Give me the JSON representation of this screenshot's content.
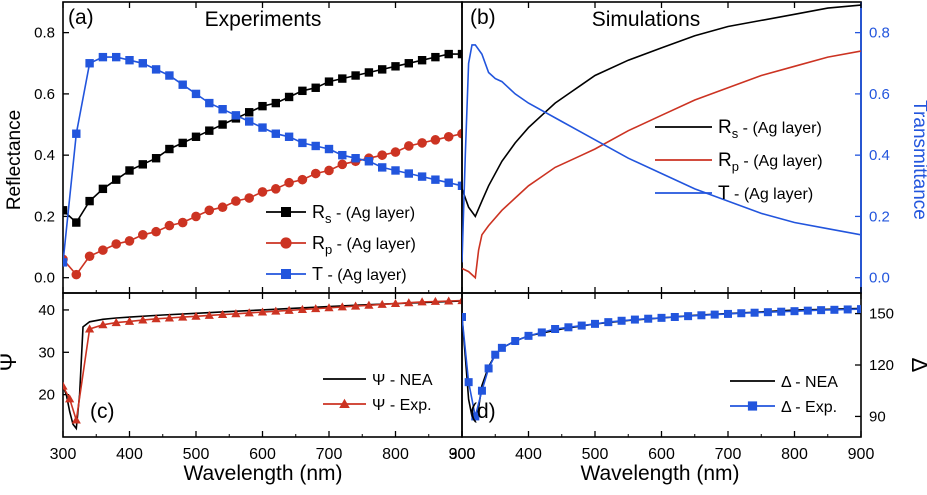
{
  "chart_data": [
    {
      "panel": "a",
      "type": "line",
      "panel_label": "(a)",
      "title": "Experiments",
      "ylabel": "Reflectance",
      "xlim": [
        300,
        900
      ],
      "ylim": [
        -0.05,
        0.9
      ],
      "yticks": [
        "0.0",
        "0.2",
        "0.4",
        "0.6",
        "0.8"
      ],
      "ytick_values": [
        0.0,
        0.2,
        0.4,
        0.6,
        0.8
      ],
      "legend_position": "bottom-right",
      "series": [
        {
          "key": "Rs",
          "label_main": "R",
          "label_sub": "s",
          "label_rest": " - (Ag layer)",
          "color": "#000000",
          "marker": "square",
          "x": [
            300,
            320,
            340,
            360,
            380,
            400,
            420,
            440,
            460,
            480,
            500,
            520,
            540,
            560,
            580,
            600,
            620,
            640,
            660,
            680,
            700,
            720,
            740,
            760,
            780,
            800,
            820,
            840,
            860,
            880,
            900
          ],
          "y": [
            0.22,
            0.18,
            0.25,
            0.29,
            0.32,
            0.35,
            0.37,
            0.39,
            0.42,
            0.44,
            0.46,
            0.48,
            0.5,
            0.52,
            0.54,
            0.56,
            0.57,
            0.59,
            0.61,
            0.62,
            0.64,
            0.65,
            0.66,
            0.67,
            0.68,
            0.69,
            0.7,
            0.71,
            0.72,
            0.73,
            0.73
          ]
        },
        {
          "key": "Rp",
          "label_main": "R",
          "label_sub": "p",
          "label_rest": " - (Ag layer)",
          "color": "#cc3322",
          "marker": "circle",
          "x": [
            300,
            320,
            340,
            360,
            380,
            400,
            420,
            440,
            460,
            480,
            500,
            520,
            540,
            560,
            580,
            600,
            620,
            640,
            660,
            680,
            700,
            720,
            740,
            760,
            780,
            800,
            820,
            840,
            860,
            880,
            900
          ],
          "y": [
            0.06,
            0.01,
            0.07,
            0.09,
            0.11,
            0.12,
            0.14,
            0.15,
            0.17,
            0.18,
            0.2,
            0.22,
            0.23,
            0.25,
            0.26,
            0.28,
            0.29,
            0.31,
            0.32,
            0.34,
            0.35,
            0.37,
            0.38,
            0.39,
            0.4,
            0.41,
            0.43,
            0.44,
            0.45,
            0.46,
            0.47
          ]
        },
        {
          "key": "T",
          "label_main": "T",
          "label_sub": "",
          "label_rest": "  - (Ag layer)",
          "color": "#2255dd",
          "marker": "square",
          "x": [
            300,
            320,
            340,
            360,
            380,
            400,
            420,
            440,
            460,
            480,
            500,
            520,
            540,
            560,
            580,
            600,
            620,
            640,
            660,
            680,
            700,
            720,
            740,
            760,
            780,
            800,
            820,
            840,
            860,
            880,
            900
          ],
          "y": [
            0.05,
            0.47,
            0.7,
            0.72,
            0.72,
            0.71,
            0.7,
            0.68,
            0.66,
            0.63,
            0.6,
            0.57,
            0.55,
            0.53,
            0.51,
            0.49,
            0.47,
            0.46,
            0.44,
            0.43,
            0.42,
            0.4,
            0.39,
            0.38,
            0.36,
            0.35,
            0.34,
            0.33,
            0.32,
            0.31,
            0.3
          ]
        }
      ]
    },
    {
      "panel": "b",
      "type": "line",
      "panel_label": "(b)",
      "title": "Simulations",
      "ylabel_right": "Transmittance",
      "xlim": [
        300,
        900
      ],
      "ylim": [
        -0.05,
        0.9
      ],
      "yticks_right": [
        "0.0",
        "0.2",
        "0.4",
        "0.6",
        "0.8"
      ],
      "ytick_values": [
        0.0,
        0.2,
        0.4,
        0.6,
        0.8
      ],
      "legend_position": "right-middle",
      "series": [
        {
          "key": "Rs",
          "label_main": "R",
          "label_sub": "s",
          "label_rest": " - (Ag layer)",
          "color": "#000000",
          "x": [
            300,
            310,
            320,
            330,
            340,
            360,
            380,
            400,
            420,
            440,
            460,
            480,
            500,
            550,
            600,
            650,
            700,
            750,
            800,
            850,
            900
          ],
          "y": [
            0.29,
            0.23,
            0.2,
            0.25,
            0.3,
            0.38,
            0.44,
            0.49,
            0.53,
            0.57,
            0.6,
            0.63,
            0.66,
            0.71,
            0.75,
            0.79,
            0.82,
            0.84,
            0.86,
            0.88,
            0.89
          ]
        },
        {
          "key": "Rp",
          "label_main": "R",
          "label_sub": "p",
          "label_rest": " - (Ag layer)",
          "color": "#cc3322",
          "x": [
            300,
            310,
            320,
            325,
            330,
            340,
            360,
            380,
            400,
            420,
            440,
            460,
            480,
            500,
            550,
            600,
            650,
            700,
            750,
            800,
            850,
            900
          ],
          "y": [
            0.03,
            0.02,
            0.0,
            0.09,
            0.14,
            0.17,
            0.22,
            0.26,
            0.3,
            0.33,
            0.36,
            0.38,
            0.4,
            0.42,
            0.48,
            0.53,
            0.58,
            0.62,
            0.66,
            0.69,
            0.72,
            0.74
          ]
        },
        {
          "key": "T",
          "label_main": "T",
          "label_sub": "",
          "label_rest": "  - (Ag layer)",
          "color": "#2255dd",
          "x": [
            300,
            305,
            310,
            315,
            320,
            330,
            340,
            350,
            360,
            380,
            400,
            450,
            500,
            550,
            600,
            650,
            700,
            750,
            800,
            850,
            900
          ],
          "y": [
            0.05,
            0.4,
            0.7,
            0.76,
            0.76,
            0.73,
            0.67,
            0.65,
            0.64,
            0.6,
            0.57,
            0.51,
            0.45,
            0.39,
            0.34,
            0.29,
            0.25,
            0.21,
            0.18,
            0.16,
            0.14
          ]
        }
      ]
    },
    {
      "panel": "c",
      "type": "line",
      "panel_label": "(c)",
      "ylabel": "Ψ",
      "xlabel": "Wavelength (nm)",
      "xlim": [
        300,
        900
      ],
      "xticks": [
        "300",
        "400",
        "500",
        "600",
        "700",
        "800",
        "900"
      ],
      "xtick_values": [
        300,
        400,
        500,
        600,
        700,
        800,
        900
      ],
      "ylim": [
        10,
        44
      ],
      "yticks": [
        "20",
        "30",
        "40"
      ],
      "ytick_values": [
        20,
        30,
        40
      ],
      "legend_position": "bottom-right",
      "series": [
        {
          "key": "NEA",
          "label": "Ψ - NEA",
          "color": "#000000",
          "x": [
            300,
            305,
            310,
            315,
            320,
            325,
            330,
            340,
            360,
            380,
            400,
            450,
            500,
            550,
            600,
            650,
            700,
            750,
            800,
            850,
            900
          ],
          "y": [
            22,
            20,
            16,
            13,
            12,
            20,
            36,
            37.2,
            37.8,
            38.1,
            38.3,
            38.8,
            39.2,
            39.6,
            40.0,
            40.4,
            40.8,
            41.2,
            41.5,
            41.8,
            42.1
          ]
        },
        {
          "key": "Exp",
          "label": "Ψ - Exp.",
          "color": "#cc3322",
          "marker": "triangle",
          "x": [
            300,
            310,
            320,
            340,
            360,
            380,
            400,
            420,
            440,
            460,
            480,
            500,
            520,
            540,
            560,
            580,
            600,
            620,
            640,
            660,
            680,
            700,
            720,
            740,
            760,
            780,
            800,
            820,
            840,
            860,
            880,
            900
          ],
          "y": [
            22,
            19,
            14,
            35.5,
            36.5,
            37,
            37.3,
            37.6,
            37.9,
            38.1,
            38.3,
            38.5,
            38.7,
            38.9,
            39.1,
            39.3,
            39.5,
            39.7,
            39.9,
            40.1,
            40.3,
            40.5,
            40.7,
            40.9,
            41.1,
            41.3,
            41.5,
            41.7,
            41.9,
            42.0,
            42.1,
            42.2
          ]
        }
      ]
    },
    {
      "panel": "d",
      "type": "line",
      "panel_label": "(d)",
      "ylabel_right": "Δ",
      "xlabel": "Wavelength (nm)",
      "xlim": [
        300,
        900
      ],
      "xticks": [
        "300",
        "400",
        "500",
        "600",
        "700",
        "800",
        "900"
      ],
      "xtick_values": [
        300,
        400,
        500,
        600,
        700,
        800,
        900
      ],
      "ylim": [
        78,
        162
      ],
      "yticks_right": [
        "90",
        "120",
        "150"
      ],
      "ytick_values": [
        90,
        120,
        150
      ],
      "legend_position": "bottom-right",
      "series": [
        {
          "key": "NEA",
          "label": "Δ - NEA",
          "color": "#000000",
          "x": [
            300,
            305,
            310,
            315,
            320,
            325,
            330,
            340,
            350,
            360,
            380,
            400,
            450,
            500,
            550,
            600,
            650,
            700,
            750,
            800,
            850,
            900
          ],
          "y": [
            148,
            125,
            100,
            90,
            88,
            95,
            108,
            119,
            126,
            130,
            134,
            137,
            141,
            144,
            146,
            147.5,
            149,
            150,
            151,
            152,
            152.5,
            153
          ]
        },
        {
          "key": "Exp",
          "label": "Δ - Exp.",
          "color": "#2255dd",
          "marker": "square",
          "x": [
            300,
            310,
            320,
            330,
            340,
            350,
            360,
            380,
            400,
            420,
            440,
            460,
            480,
            500,
            520,
            540,
            560,
            580,
            600,
            620,
            640,
            660,
            680,
            700,
            720,
            740,
            760,
            780,
            800,
            820,
            840,
            860,
            880,
            900
          ],
          "y": [
            148,
            110,
            90,
            105,
            118,
            126,
            130,
            134,
            137,
            139,
            141,
            142,
            143,
            144,
            145,
            145.8,
            146.5,
            147,
            147.5,
            148,
            148.5,
            149,
            149.4,
            149.8,
            150.2,
            150.5,
            150.8,
            151.1,
            151.4,
            151.7,
            152,
            152.2,
            152.4,
            152.6
          ]
        }
      ]
    }
  ]
}
